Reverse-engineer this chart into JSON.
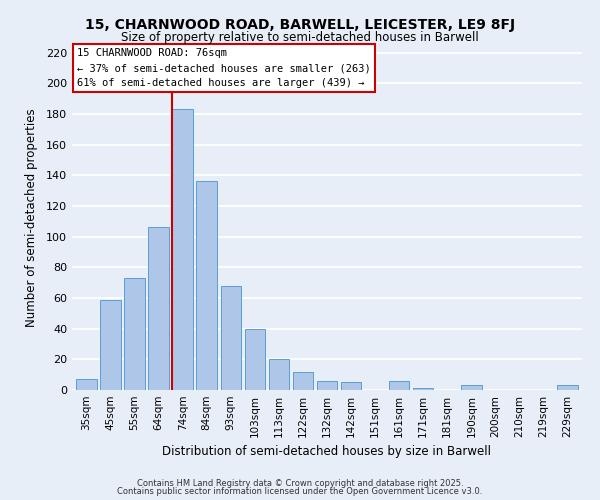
{
  "title": "15, CHARNWOOD ROAD, BARWELL, LEICESTER, LE9 8FJ",
  "subtitle": "Size of property relative to semi-detached houses in Barwell",
  "xlabel": "Distribution of semi-detached houses by size in Barwell",
  "ylabel": "Number of semi-detached properties",
  "bar_labels": [
    "35sqm",
    "45sqm",
    "55sqm",
    "64sqm",
    "74sqm",
    "84sqm",
    "93sqm",
    "103sqm",
    "113sqm",
    "122sqm",
    "132sqm",
    "142sqm",
    "151sqm",
    "161sqm",
    "171sqm",
    "181sqm",
    "190sqm",
    "200sqm",
    "210sqm",
    "219sqm",
    "229sqm"
  ],
  "bar_values": [
    7,
    59,
    73,
    106,
    183,
    136,
    68,
    40,
    20,
    12,
    6,
    5,
    0,
    6,
    1,
    0,
    3,
    0,
    0,
    0,
    3
  ],
  "bar_color": "#aec6e8",
  "bar_edge_color": "#5a9fd4",
  "highlight_bar_index": 4,
  "vline_color": "#cc0000",
  "annotation_title": "15 CHARNWOOD ROAD: 76sqm",
  "annotation_line1": "← 37% of semi-detached houses are smaller (263)",
  "annotation_line2": "61% of semi-detached houses are larger (439) →",
  "annotation_box_color": "#ffffff",
  "annotation_box_edge": "#cc0000",
  "ylim": [
    0,
    225
  ],
  "yticks": [
    0,
    20,
    40,
    60,
    80,
    100,
    120,
    140,
    160,
    180,
    200,
    220
  ],
  "background_color": "#e8eef8",
  "grid_color": "#ffffff",
  "footer_line1": "Contains HM Land Registry data © Crown copyright and database right 2025.",
  "footer_line2": "Contains public sector information licensed under the Open Government Licence v3.0."
}
